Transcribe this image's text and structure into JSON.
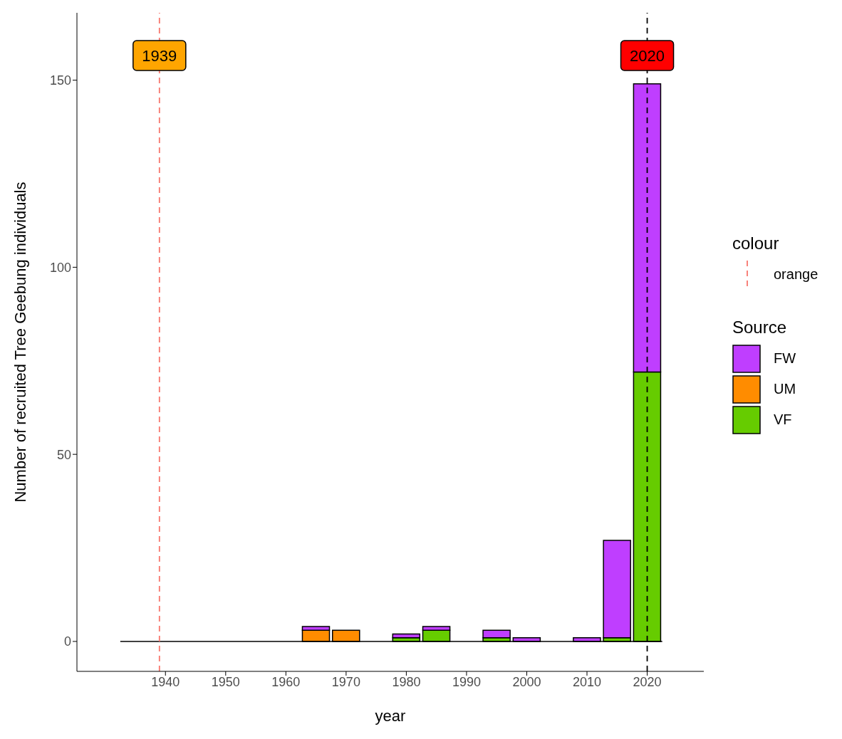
{
  "chart_data": {
    "type": "bar",
    "xlabel": "year",
    "ylabel": "Number of recruited Tree Geebung individuals",
    "legend_title": "Source",
    "stacked": true,
    "x": [
      1935,
      1940,
      1945,
      1950,
      1955,
      1960,
      1965,
      1970,
      1975,
      1980,
      1985,
      1990,
      1995,
      2000,
      2005,
      2010,
      2015,
      2020
    ],
    "series": [
      {
        "name": "VF",
        "color": "#66cc00",
        "values": [
          0,
          0,
          0,
          0,
          0,
          0,
          0,
          0,
          0,
          1,
          3,
          0,
          1,
          0,
          0,
          0,
          1,
          72
        ]
      },
      {
        "name": "UM",
        "color": "#ff8c00",
        "values": [
          0,
          0,
          0,
          0,
          0,
          0,
          3,
          3,
          0,
          0,
          0,
          0,
          0,
          0,
          0,
          0,
          0,
          0
        ]
      },
      {
        "name": "FW",
        "color": "#bf3eff",
        "values": [
          0,
          0,
          0,
          0,
          0,
          0,
          1,
          0,
          0,
          1,
          1,
          0,
          2,
          1,
          0,
          1,
          26,
          77
        ]
      }
    ],
    "xlim": [
      1925.3,
      2029.4
    ],
    "xticks": [
      1940,
      1950,
      1960,
      1970,
      1980,
      1990,
      2000,
      2010,
      2020
    ],
    "ylim": [
      -8,
      168
    ],
    "yticks": [
      0,
      50,
      100,
      150
    ],
    "grid": false,
    "legend": "right",
    "ref_lines": [
      {
        "axis": "x",
        "value": 1939,
        "label": "1939",
        "color": "#f8766d",
        "line_style": "dashed"
      },
      {
        "axis": "x",
        "value": 2020,
        "label": "2020",
        "color": "#000000",
        "line_style": "dashed"
      }
    ],
    "annotations": [
      "colour",
      "orange"
    ]
  }
}
